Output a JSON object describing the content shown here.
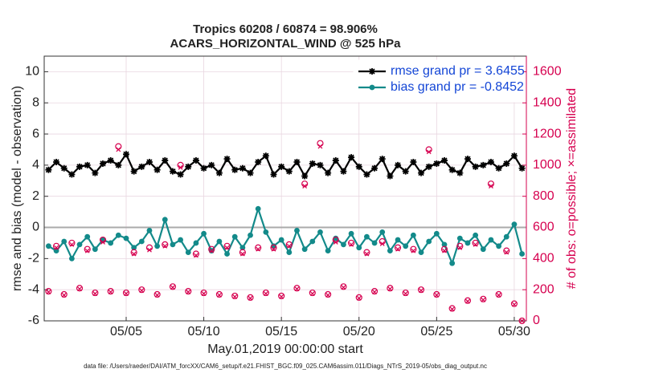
{
  "chart_data": {
    "type": "line",
    "title": "Tropics 60208 / 60874 = 98.906%",
    "subtitle": "ACARS_HORIZONTAL_WIND @ 525 hPa",
    "ylabel": "rmse and bias (model - observation)",
    "y2label": "# of obs: o=possible; ×=assimilated",
    "xlabel": "May.01,2019 00:00:00 start",
    "footnote": "data file: /Users/raeder/DAI/ATM_forcXX/CAM6_setup/f.e21.FHIST_BGC.f09_025.CAM6assim.011/Diags_NTrS_2019-05/obs_diag_output.nc",
    "x": [
      0,
      0.5,
      1,
      1.5,
      2,
      2.5,
      3,
      3.5,
      4,
      4.5,
      5,
      5.5,
      6,
      6.5,
      7,
      7.5,
      8,
      8.5,
      9,
      9.5,
      10,
      10.5,
      11,
      11.5,
      12,
      12.5,
      13,
      13.5,
      14,
      14.5,
      15,
      15.5,
      16,
      16.5,
      17,
      17.5,
      18,
      18.5,
      19,
      19.5,
      20,
      20.5,
      21,
      21.5,
      22,
      22.5,
      23,
      23.5,
      24,
      24.5,
      25,
      25.5,
      26,
      26.5,
      27,
      27.5,
      28,
      28.5,
      29,
      29.5,
      30,
      30.5
    ],
    "xlim": [
      -0.28,
      30.78
    ],
    "xticks": [
      {
        "value": 5,
        "label": "05/05"
      },
      {
        "value": 10,
        "label": "05/10"
      },
      {
        "value": 15,
        "label": "05/15"
      },
      {
        "value": 20,
        "label": "05/20"
      },
      {
        "value": 25,
        "label": "05/25"
      },
      {
        "value": 30,
        "label": "05/30"
      }
    ],
    "ylim": [
      -6,
      11
    ],
    "yticks": [
      -6,
      -4,
      -2,
      0,
      2,
      4,
      6,
      8,
      10
    ],
    "y2lim": [
      0,
      1700
    ],
    "y2ticks": [
      0,
      200,
      400,
      600,
      800,
      1000,
      1200,
      1400,
      1600
    ],
    "grid": true,
    "legend": "upper right",
    "series": [
      {
        "name": "rmse grand pr = 3.6455",
        "color": "#000000",
        "marker": "star",
        "values": [
          3.7,
          4.2,
          3.8,
          3.4,
          3.9,
          4.0,
          3.5,
          4.1,
          4.3,
          4.0,
          4.7,
          3.6,
          3.9,
          4.2,
          3.7,
          4.3,
          3.6,
          3.4,
          3.9,
          4.3,
          3.8,
          4.0,
          3.5,
          4.4,
          3.7,
          3.8,
          3.5,
          4.2,
          4.6,
          3.4,
          3.9,
          3.6,
          4.2,
          3.3,
          4.1,
          4.0,
          3.5,
          4.3,
          3.6,
          4.5,
          3.9,
          3.4,
          3.8,
          4.4,
          3.3,
          4.0,
          3.6,
          4.2,
          3.5,
          3.9,
          4.1,
          4.3,
          3.7,
          3.5,
          4.4,
          3.9,
          4.0,
          4.2,
          3.8,
          4.1,
          4.6,
          3.8
        ]
      },
      {
        "name": "bias grand pr = -0.8452",
        "color": "#138a8a",
        "marker": "dot",
        "values": [
          -1.2,
          -1.5,
          -0.9,
          -2.0,
          -1.1,
          -0.6,
          -1.4,
          -0.8,
          -1.0,
          -0.5,
          -0.7,
          -1.3,
          -0.9,
          -0.2,
          -1.2,
          0.5,
          -1.1,
          -0.8,
          -1.6,
          -1.0,
          -0.4,
          -1.5,
          -0.9,
          -1.7,
          -0.6,
          -1.3,
          -0.5,
          1.2,
          -0.3,
          -1.2,
          -0.8,
          -1.6,
          -0.2,
          -1.4,
          -0.9,
          -0.3,
          -1.5,
          -0.7,
          -1.1,
          -0.4,
          -1.3,
          -0.6,
          -1.0,
          -0.3,
          -1.5,
          -0.8,
          -1.2,
          -0.5,
          -1.6,
          -0.9,
          -0.4,
          -1.1,
          -2.3,
          -0.7,
          -1.0,
          -0.5,
          -1.4,
          -0.8,
          -1.2,
          -0.6,
          0.2,
          -1.7
        ]
      },
      {
        "color": "#d6004f",
        "marker": "circle",
        "axis": "y2",
        "values": [
          190,
          480,
          170,
          500,
          210,
          460,
          180,
          520,
          190,
          1120,
          180,
          440,
          200,
          470,
          170,
          490,
          220,
          1000,
          190,
          430,
          180,
          460,
          170,
          480,
          160,
          440,
          150,
          470,
          180,
          470,
          160,
          490,
          210,
          880,
          180,
          1140,
          170,
          520,
          220,
          500,
          150,
          440,
          190,
          510,
          210,
          470,
          180,
          460,
          200,
          1100,
          170,
          460,
          80,
          480,
          130,
          500,
          140,
          880,
          170,
          450,
          110,
          0
        ]
      },
      {
        "color": "#d6004f",
        "marker": "cross",
        "axis": "y2",
        "values": [
          185,
          470,
          165,
          490,
          205,
          450,
          175,
          505,
          185,
          1100,
          175,
          430,
          195,
          455,
          165,
          480,
          215,
          985,
          185,
          420,
          175,
          450,
          165,
          470,
          155,
          430,
          145,
          460,
          175,
          460,
          155,
          480,
          205,
          865,
          175,
          1120,
          165,
          505,
          215,
          490,
          145,
          430,
          185,
          495,
          205,
          460,
          175,
          450,
          195,
          1085,
          165,
          450,
          75,
          470,
          125,
          490,
          135,
          865,
          165,
          440,
          105,
          0
        ]
      }
    ]
  }
}
